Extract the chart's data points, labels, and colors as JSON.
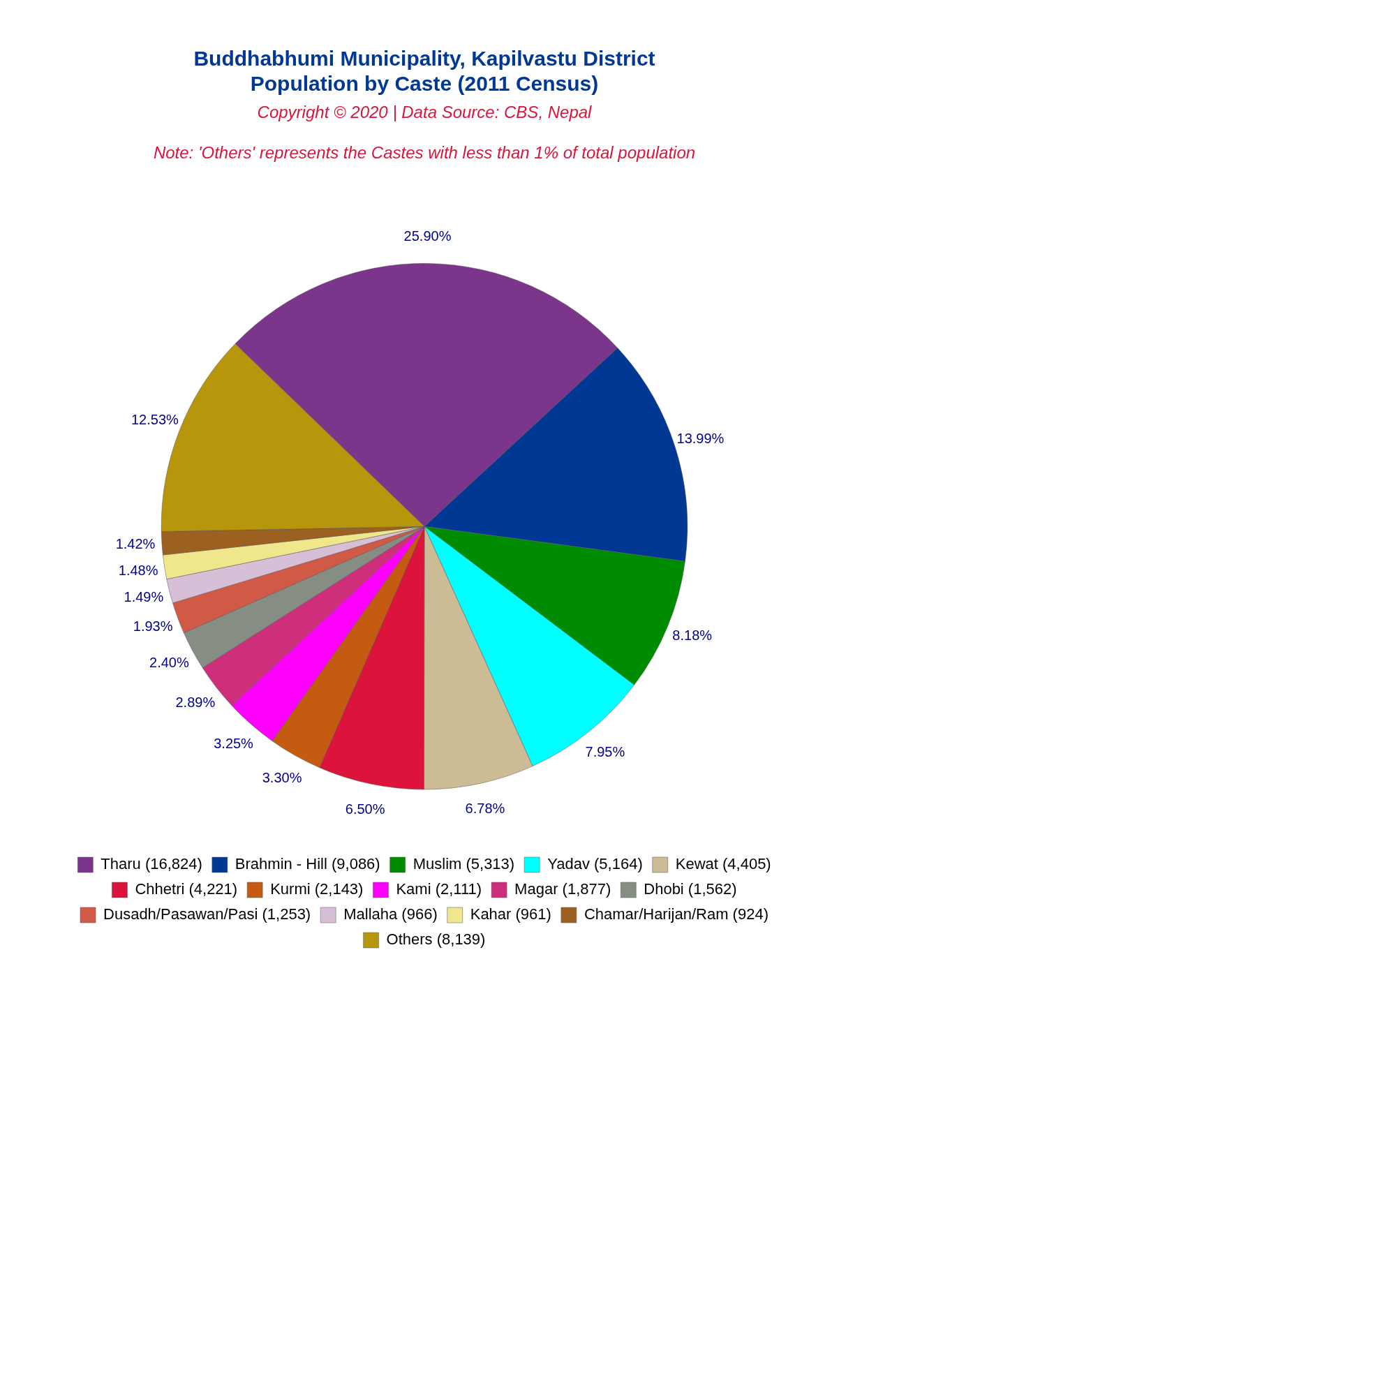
{
  "chart_data": {
    "type": "pie",
    "title": "Buddhabhumi Municipality, Kapilvastu District\nPopulation by Caste (2011 Census)",
    "subtitle": "Copyright © 2020 | Data Source: CBS, Nepal",
    "annotations": [
      "Note: 'Others' represents the Castes with less than 1% of total population"
    ],
    "categories": [
      "Tharu (16,824)",
      "Brahmin - Hill (9,086)",
      "Muslim (5,313)",
      "Yadav (5,164)",
      "Kewat (4,405)",
      "Chhetri (4,221)",
      "Kurmi (2,143)",
      "Kami (2,111)",
      "Magar (1,877)",
      "Dhobi (1,562)",
      "Dusadh/Pasawan/Pasi (1,253)",
      "Mallaha (966)",
      "Kahar (961)",
      "Chamar/Harijan/Ram (924)",
      "Others (8,139)"
    ],
    "values": [
      25.9,
      13.99,
      8.18,
      7.95,
      6.78,
      6.5,
      3.3,
      3.25,
      2.89,
      2.4,
      1.93,
      1.49,
      1.48,
      1.42,
      12.53
    ],
    "value_labels": [
      "25.90%",
      "13.99%",
      "8.18%",
      "7.95%",
      "6.78%",
      "6.50%",
      "3.30%",
      "3.25%",
      "2.89%",
      "2.40%",
      "1.93%",
      "1.49%",
      "1.48%",
      "1.42%",
      "12.53%"
    ],
    "colors": [
      "#7b368b",
      "#003893",
      "#008c00",
      "#00ffff",
      "#cdbb96",
      "#dc143c",
      "#c55a11",
      "#ff00ff",
      "#cf2e7a",
      "#868d82",
      "#d05a45",
      "#d8bfd8",
      "#f0e68c",
      "#9c6020",
      "#b8960b"
    ],
    "legend": "bottom"
  }
}
